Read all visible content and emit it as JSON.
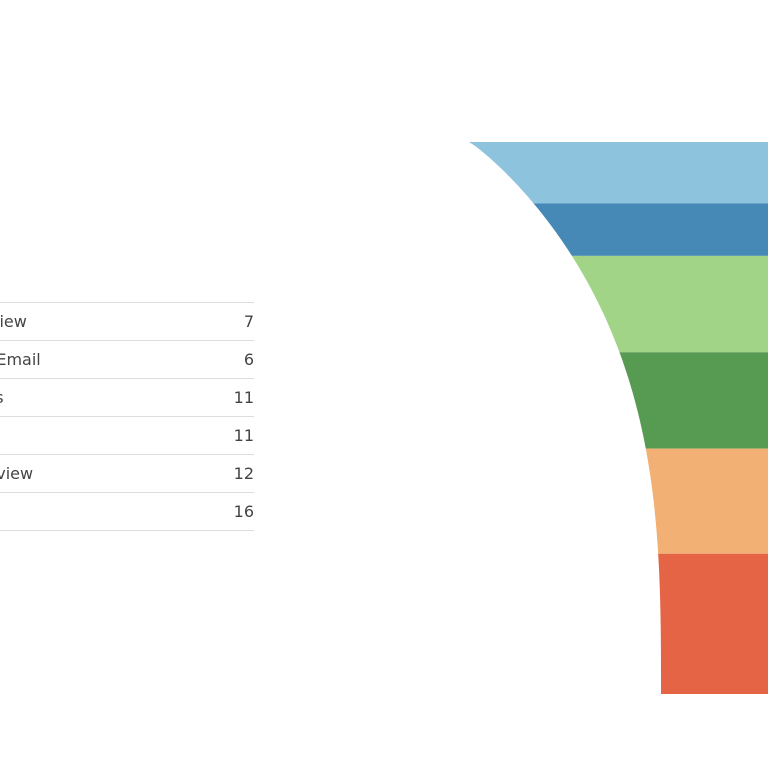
{
  "chart_data": {
    "type": "funnel",
    "categories": [
      "Interview",
      "Email",
      "Documents",
      "",
      "Interview",
      ""
    ],
    "visible_category_text": [
      "view",
      "t Email",
      "ents",
      "",
      "r Interview",
      ""
    ],
    "values": [
      7,
      6,
      11,
      11,
      12,
      16
    ],
    "colors": [
      "#8ec3de",
      "#4689b6",
      "#a2d488",
      "#579b52",
      "#f2b074",
      "#e56446"
    ],
    "legend": "left table",
    "grid": false
  }
}
